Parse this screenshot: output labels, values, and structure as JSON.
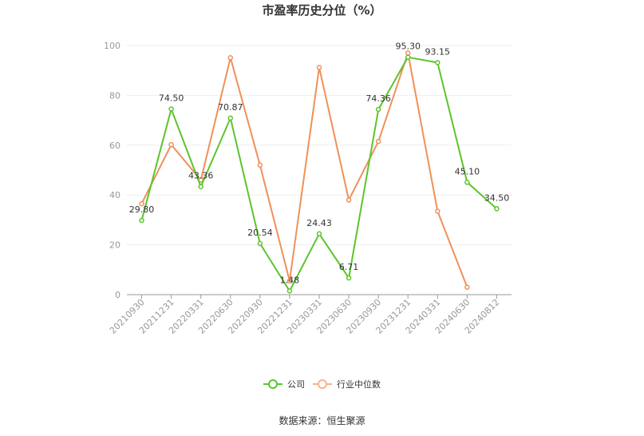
{
  "chart_data": {
    "type": "line",
    "title": "市盈率历史分位（%）",
    "categories": [
      "20210930",
      "20211231",
      "20220331",
      "20220630",
      "20220930",
      "20221231",
      "20230331",
      "20230630",
      "20230930",
      "20231231",
      "20240331",
      "20240630",
      "20240812"
    ],
    "ylim": [
      0,
      100
    ],
    "yticks": [
      0,
      20,
      40,
      60,
      80,
      100
    ],
    "grid": true,
    "legend_position": "bottom",
    "series": [
      {
        "name": "公司",
        "color": "#5cc42b",
        "values": [
          29.8,
          74.5,
          43.36,
          70.87,
          20.54,
          1.48,
          24.43,
          6.71,
          74.36,
          95.3,
          93.15,
          45.1,
          34.5
        ],
        "labels": [
          "29.80",
          "74.50",
          "43.36",
          "70.87",
          "20.54",
          "1.48",
          "24.43",
          "6.71",
          "74.36",
          "95.30",
          "93.15",
          "45.10",
          "34.50"
        ]
      },
      {
        "name": "行业中位数",
        "color": "#f0905a",
        "values": [
          36.5,
          60.2,
          46.0,
          95.1,
          52.0,
          5.5,
          91.2,
          38.0,
          61.5,
          97.0,
          33.5,
          3.0,
          null
        ]
      }
    ]
  },
  "source": "数据来源：恒生聚源"
}
